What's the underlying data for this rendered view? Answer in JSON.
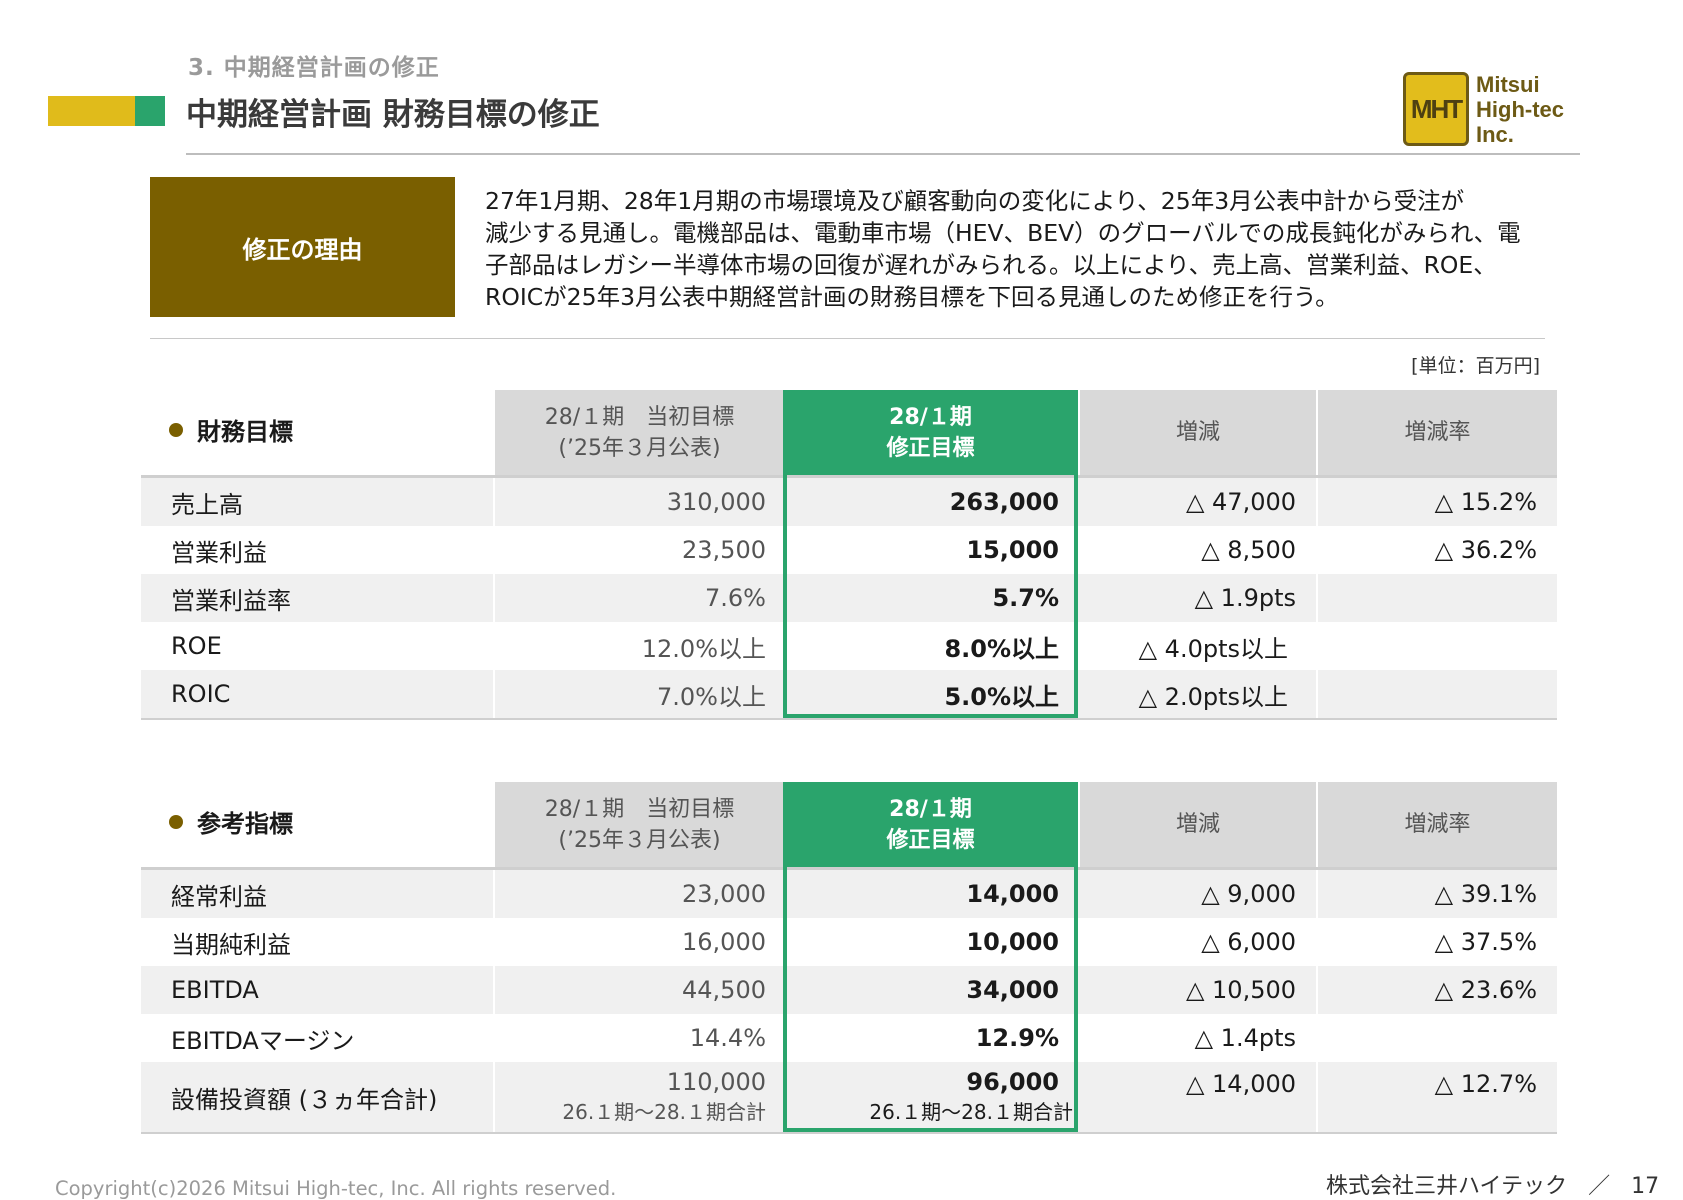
{
  "header": {
    "section_label": "3. 中期経営計画の修正",
    "title": "中期経営計画 財務目標の修正"
  },
  "logo": {
    "mark": "MHT",
    "line1": "Mitsui",
    "line2": "High-tec",
    "line3": "Inc."
  },
  "reason": {
    "label": "修正の理由",
    "lines": [
      "27年1月期、28年1月期の市場環境及び顧客動向の変化により、25年3月公表中計から受注が",
      "減少する見通し。電機部品は、電動車市場（HEV、BEV）のグローバルでの成長鈍化がみられ、電",
      "子部品はレガシー半導体市場の回復が遅れがみられる。以上により、売上高、営業利益、ROE、",
      "ROICが25年3月公表中期経営計画の財務目標を下回る見通しのため修正を行う。"
    ]
  },
  "unit_note": "[単位：百万円]",
  "columns": {
    "initial_line1": "28/１期　当初目標",
    "initial_line2": "(’25年３月公表)",
    "revised_line1": "28/１期",
    "revised_line2": "修正目標",
    "change": "増減",
    "change_rate": "増減率"
  },
  "financial": {
    "heading": "財務目標",
    "rows": [
      {
        "label": "売上高",
        "initial": "310,000",
        "revised": "263,000",
        "change": "△ 47,000",
        "rate": "△ 15.2%"
      },
      {
        "label": "営業利益",
        "initial": "23,500",
        "revised": "15,000",
        "change": "△ 8,500",
        "rate": "△ 36.2%"
      },
      {
        "label": "営業利益率",
        "initial": "7.6%",
        "revised": "5.7%",
        "change": "△ 1.9pts",
        "rate": ""
      },
      {
        "label": "ROE",
        "initial": "12.0%以上",
        "revised": "8.0%以上",
        "change": "△ 4.0pts以上",
        "rate": ""
      },
      {
        "label": "ROIC",
        "initial": "7.0%以上",
        "revised": "5.0%以上",
        "change": "△ 2.0pts以上",
        "rate": ""
      }
    ]
  },
  "reference": {
    "heading": "参考指標",
    "rows": [
      {
        "label": "経常利益",
        "initial": "23,000",
        "revised": "14,000",
        "change": "△ 9,000",
        "rate": "△ 39.1%"
      },
      {
        "label": "当期純利益",
        "initial": "16,000",
        "revised": "10,000",
        "change": "△ 6,000",
        "rate": "△ 37.5%"
      },
      {
        "label": "EBITDA",
        "initial": "44,500",
        "revised": "34,000",
        "change": "△ 10,500",
        "rate": "△ 23.6%"
      },
      {
        "label": "EBITDAマージン",
        "initial": "14.4%",
        "revised": "12.9%",
        "change": "△ 1.4pts",
        "rate": ""
      },
      {
        "label": "設備投資額 (３ヵ年合計)",
        "initial": "110,000",
        "initial_note": "26.１期～28.１期合計",
        "revised": "96,000",
        "revised_note": "26.１期～28.１期合計",
        "change": "△ 14,000",
        "rate": "△ 12.7%"
      }
    ]
  },
  "footer": {
    "copyright": "Copyright(c)2026 Mitsui High-tec, Inc. All rights reserved.",
    "company": "株式会社三井ハイテック",
    "separator": "／",
    "page": "17"
  },
  "colors": {
    "accent_green": "#2aa46c",
    "accent_yellow": "#e0bb1b",
    "reason_brown": "#7a5f00",
    "header_gray": "#d9d9d9"
  }
}
